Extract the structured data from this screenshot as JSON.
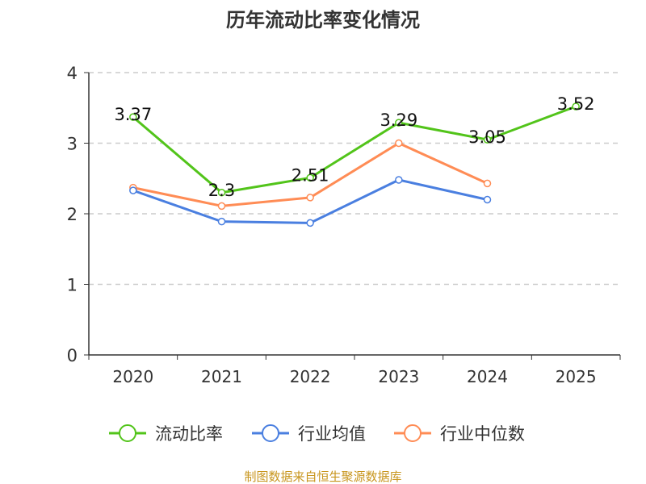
{
  "chart_data": {
    "type": "line",
    "title": "历年流动比率变化情况",
    "categories": [
      "2020",
      "2021",
      "2022",
      "2023",
      "2024",
      "2025"
    ],
    "ylim": [
      0,
      4
    ],
    "yticks": [
      0,
      1,
      2,
      3,
      4
    ],
    "grid": true,
    "legend_position": "bottom",
    "series": [
      {
        "name": "流动比率",
        "color": "#52c41a",
        "values": [
          3.37,
          2.3,
          2.51,
          3.29,
          3.05,
          3.52
        ],
        "labels": [
          "3.37",
          "2.3",
          "2.51",
          "3.29",
          "3.05",
          "3.52"
        ]
      },
      {
        "name": "行业均值",
        "color": "#4a7fe0",
        "values": [
          2.33,
          1.89,
          1.87,
          2.48,
          2.2,
          null
        ]
      },
      {
        "name": "行业中位数",
        "color": "#ff8c55",
        "values": [
          2.37,
          2.11,
          2.23,
          3.0,
          2.43,
          null
        ]
      }
    ]
  },
  "footer": "制图数据来自恒生聚源数据库"
}
